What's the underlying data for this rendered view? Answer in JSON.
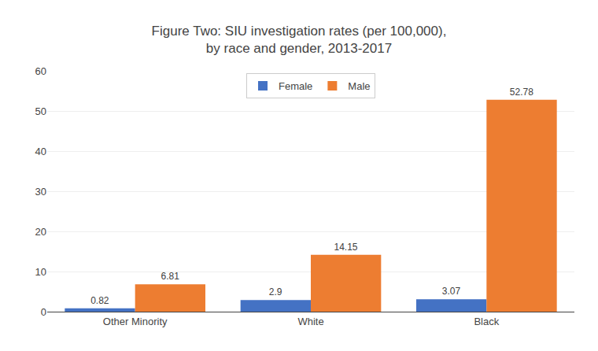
{
  "chart_data": {
    "type": "bar",
    "title": "Figure Two: SIU investigation rates (per 100,000),\nby race and gender, 2013-2017",
    "categories": [
      "Other Minority",
      "White",
      "Black"
    ],
    "series": [
      {
        "name": "Female",
        "color": "#4472C4",
        "values": [
          0.82,
          2.9,
          3.07
        ]
      },
      {
        "name": "Male",
        "color": "#ED7D31",
        "values": [
          6.81,
          14.15,
          52.78
        ]
      }
    ],
    "ylim": [
      0,
      60
    ],
    "yticks": [
      0,
      10,
      20,
      30,
      40,
      50,
      60
    ],
    "grid": true,
    "legend": "top",
    "data_labels": true
  }
}
